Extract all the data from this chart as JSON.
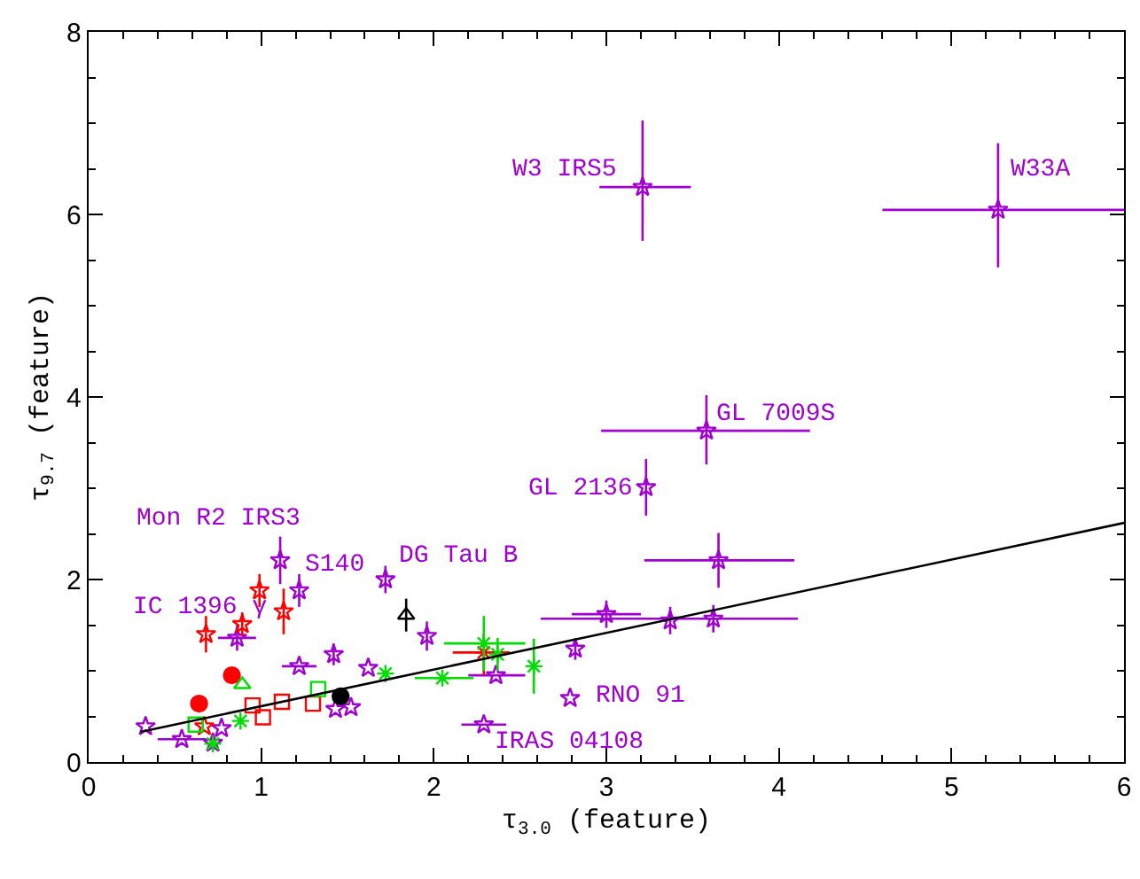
{
  "chart_data": {
    "type": "scatter",
    "xlabel": "τ$_{3.0}$ (feature)",
    "ylabel": "τ$_{9.7}$ (feature)",
    "xlim": [
      0,
      6
    ],
    "ylim": [
      0,
      8
    ],
    "xticks": [
      0,
      1,
      2,
      3,
      4,
      5,
      6
    ],
    "yticks": [
      0,
      2,
      4,
      6,
      8
    ],
    "series": [
      {
        "marker": "star",
        "color": "#a000d0",
        "x": [
          3.21,
          5.27,
          3.58,
          3.23,
          3.65,
          3.62,
          3.37,
          3.0,
          2.82,
          2.79,
          2.29,
          2.36,
          1.96,
          1.72,
          0.33,
          0.54,
          0.72,
          0.77,
          0.86,
          1.11,
          1.22,
          1.22,
          1.42,
          1.43,
          1.52,
          1.62
        ],
        "values": [
          6.3,
          6.05,
          3.63,
          3.01,
          2.21,
          1.57,
          1.55,
          1.62,
          1.24,
          0.7,
          0.41,
          0.95,
          1.38,
          2.0,
          0.39,
          0.25,
          0.21,
          0.37,
          1.36,
          2.21,
          1.88,
          1.05,
          1.18,
          0.58,
          0.6,
          1.03
        ],
        "xerrors": [
          [
            2.96,
            3.49
          ],
          [
            4.6,
            6.0
          ],
          [
            2.97,
            4.18
          ],
          null,
          [
            3.22,
            4.09
          ],
          [
            2.62,
            4.11
          ],
          null,
          [
            2.8,
            3.2
          ],
          null,
          null,
          [
            2.16,
            2.42
          ],
          [
            2.2,
            2.53
          ],
          null,
          null,
          null,
          [
            0.4,
            0.68
          ],
          null,
          null,
          [
            0.75,
            0.97
          ],
          null,
          null,
          [
            1.12,
            1.32
          ],
          null,
          null,
          null,
          null
        ],
        "errors": [
          [
            5.71,
            7.03
          ],
          [
            5.42,
            6.78
          ],
          [
            3.26,
            4.02
          ],
          [
            2.7,
            3.32
          ],
          [
            1.91,
            2.51
          ],
          [
            1.42,
            1.72
          ],
          [
            1.4,
            1.7
          ],
          [
            1.47,
            1.77
          ],
          [
            1.12,
            1.36
          ],
          null,
          null,
          null,
          [
            1.22,
            1.54
          ],
          [
            1.85,
            2.15
          ],
          null,
          null,
          null,
          null,
          [
            1.22,
            1.5
          ],
          [
            1.95,
            2.47
          ],
          [
            1.7,
            2.06
          ],
          null,
          [
            1.06,
            1.3
          ],
          null,
          null,
          null
        ]
      },
      {
        "marker": "star",
        "color": "#ff0000",
        "x": [
          0.68,
          0.89,
          0.99,
          1.13,
          0.67
        ],
        "values": [
          1.4,
          1.51,
          1.88,
          1.65,
          0.39
        ],
        "errors": [
          [
            1.2,
            1.6
          ],
          [
            1.38,
            1.64
          ],
          [
            1.7,
            2.06
          ],
          [
            1.4,
            1.9
          ],
          null
        ]
      },
      {
        "marker": "circle",
        "color": "#ff0000",
        "x": [
          0.64,
          0.83
        ],
        "values": [
          0.64,
          0.95
        ]
      },
      {
        "marker": "square",
        "color": "#ff0000",
        "x": [
          0.95,
          1.01,
          1.3,
          1.12
        ],
        "values": [
          0.62,
          0.49,
          0.64,
          0.66
        ]
      },
      {
        "marker": "cross",
        "color": "#ff0000",
        "x": [
          2.29
        ],
        "values": [
          1.2
        ],
        "xerrors": [
          [
            2.11,
            2.44
          ]
        ],
        "errors": [
          [
            0.95,
            1.4
          ]
        ]
      },
      {
        "marker": "square",
        "color": "#00dd00",
        "x": [
          0.62,
          1.33
        ],
        "values": [
          0.41,
          0.8
        ]
      },
      {
        "marker": "triangle",
        "color": "#00dd00",
        "x": [
          0.89
        ],
        "values": [
          0.85
        ]
      },
      {
        "marker": "cross",
        "color": "#00dd00",
        "x": [
          0.88,
          0.72,
          1.72,
          2.05,
          2.29,
          2.37,
          2.58
        ],
        "values": [
          0.45,
          0.2,
          0.97,
          0.92,
          1.3,
          1.18,
          1.05
        ],
        "xerrors": [
          null,
          null,
          null,
          [
            1.89,
            2.23
          ],
          [
            2.06,
            2.53
          ],
          null,
          null
        ],
        "errors": [
          null,
          null,
          null,
          null,
          [
            1.0,
            1.6
          ],
          [
            1.0,
            1.36
          ],
          [
            0.75,
            1.35
          ]
        ]
      },
      {
        "marker": "triangle",
        "color": "#000000",
        "x": [
          1.84
        ],
        "values": [
          1.61
        ],
        "errors": [
          [
            1.43,
            1.79
          ]
        ]
      },
      {
        "marker": "circle",
        "color": "#000000",
        "x": [
          1.46
        ],
        "values": [
          0.72
        ]
      },
      {
        "type": "line",
        "marker": "none",
        "color": "#000000",
        "x": [
          0.3,
          6.0
        ],
        "values": [
          0.33,
          2.62
        ]
      }
    ],
    "annotations": [
      "W3 IRS5",
      "W33A",
      "GL 7009S",
      "GL 2136",
      "Mon R2 IRS3",
      "S140",
      "DG Tau B",
      "IC 1396 γ",
      "RNO 91",
      "IRAS 04108"
    ]
  }
}
